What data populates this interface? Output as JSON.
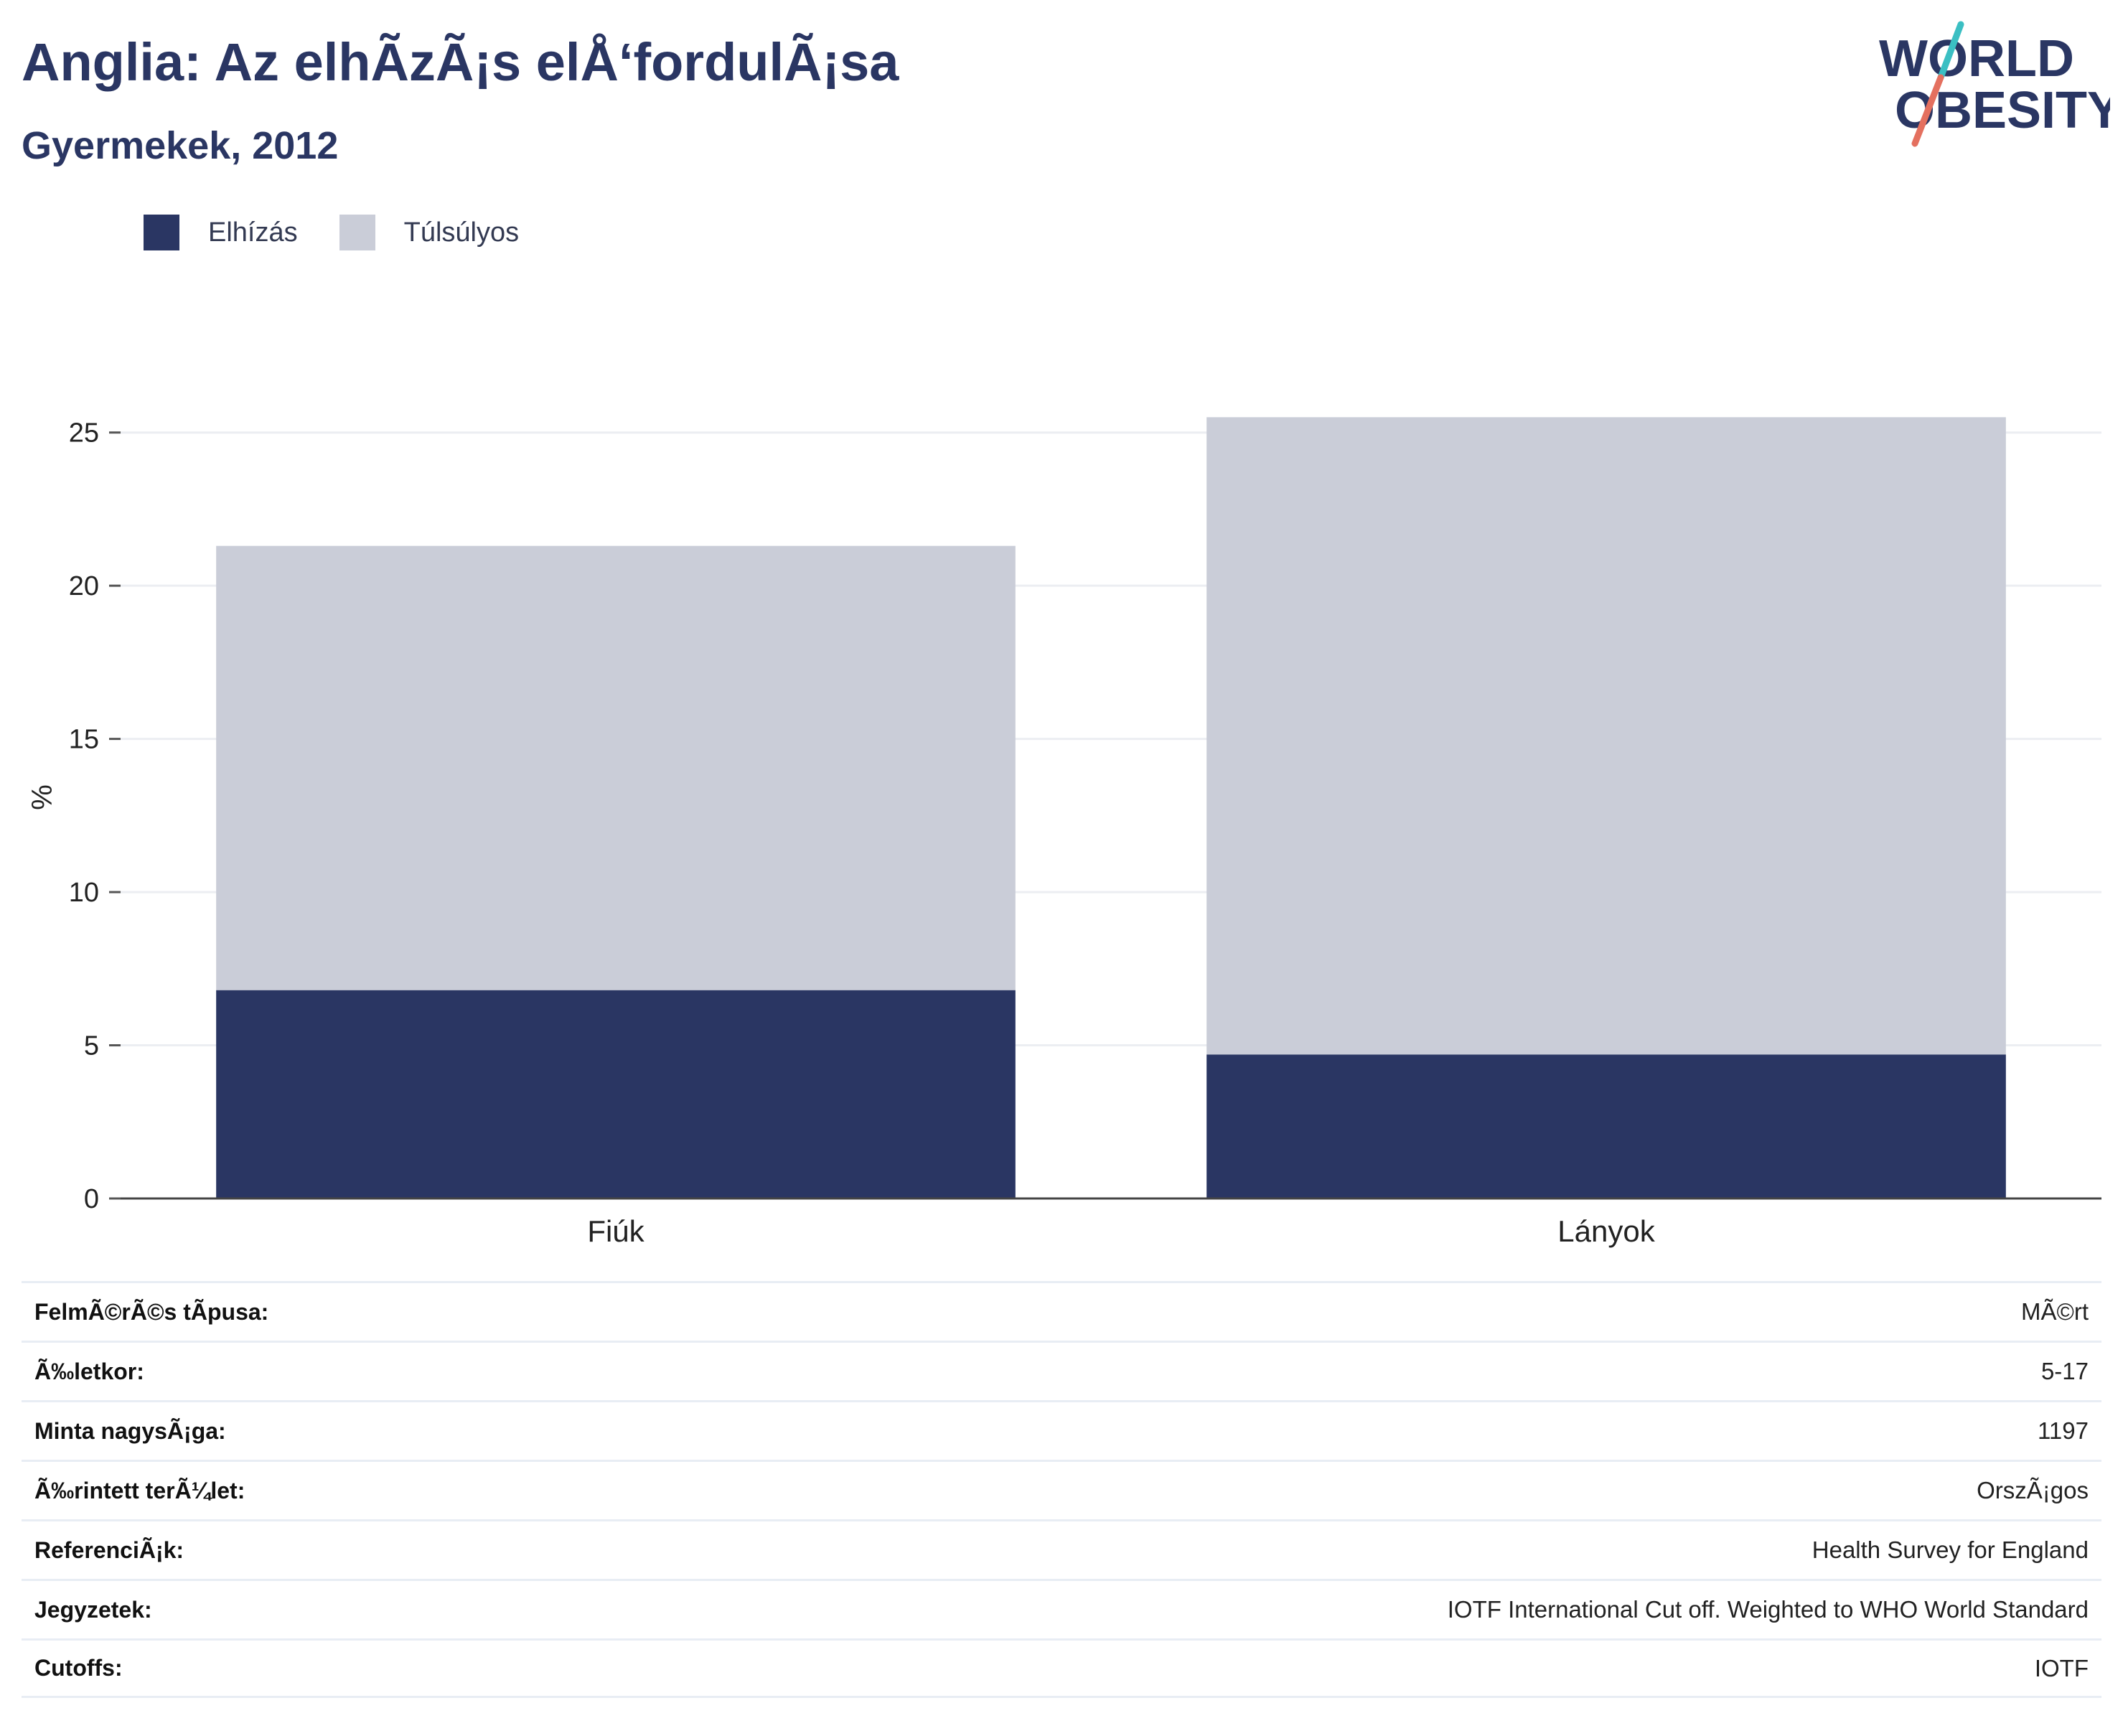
{
  "header": {
    "title": "Anglia: Az elhÃzÃ¡s elÅ‘fordulÃ¡sa",
    "subtitle": "Gyermekek, 2012",
    "logo_line1": "WORLD",
    "logo_line2": "OBESITY"
  },
  "colors": {
    "obesity": "#2a3663",
    "overweight": "#cacdd8",
    "logo_text": "#2a3663",
    "logo_slash_top": "#3bbfc3",
    "logo_slash_bottom": "#e4705f"
  },
  "chart_data": {
    "type": "bar",
    "stacked": true,
    "categories": [
      "Fiúk",
      "Lányok"
    ],
    "series": [
      {
        "name": "Elhízás",
        "values": [
          6.8,
          4.7
        ]
      },
      {
        "name": "Túlsúlyos",
        "values": [
          14.5,
          20.8
        ]
      }
    ],
    "totals": [
      21.3,
      25.5
    ],
    "ylabel": "%",
    "ylim": [
      0,
      26
    ],
    "yticks": [
      0,
      5,
      10,
      15,
      20,
      25
    ],
    "grid": true,
    "legend_position": "top-left"
  },
  "info_table": [
    {
      "label": "FelmÃ©rÃ©s tÃpusa:",
      "value": "MÃ©rt"
    },
    {
      "label": "Ã‰letkor:",
      "value": "5-17"
    },
    {
      "label": "Minta nagysÃ¡ga:",
      "value": "1197"
    },
    {
      "label": "Ã‰rintett terÃ¼let:",
      "value": "OrszÃ¡gos"
    },
    {
      "label": "ReferenciÃ¡k:",
      "value": "Health Survey for England"
    },
    {
      "label": "Jegyzetek:",
      "value": "IOTF International Cut off. Weighted to WHO World Standard"
    },
    {
      "label": "Cutoffs:",
      "value": "IOTF"
    }
  ]
}
